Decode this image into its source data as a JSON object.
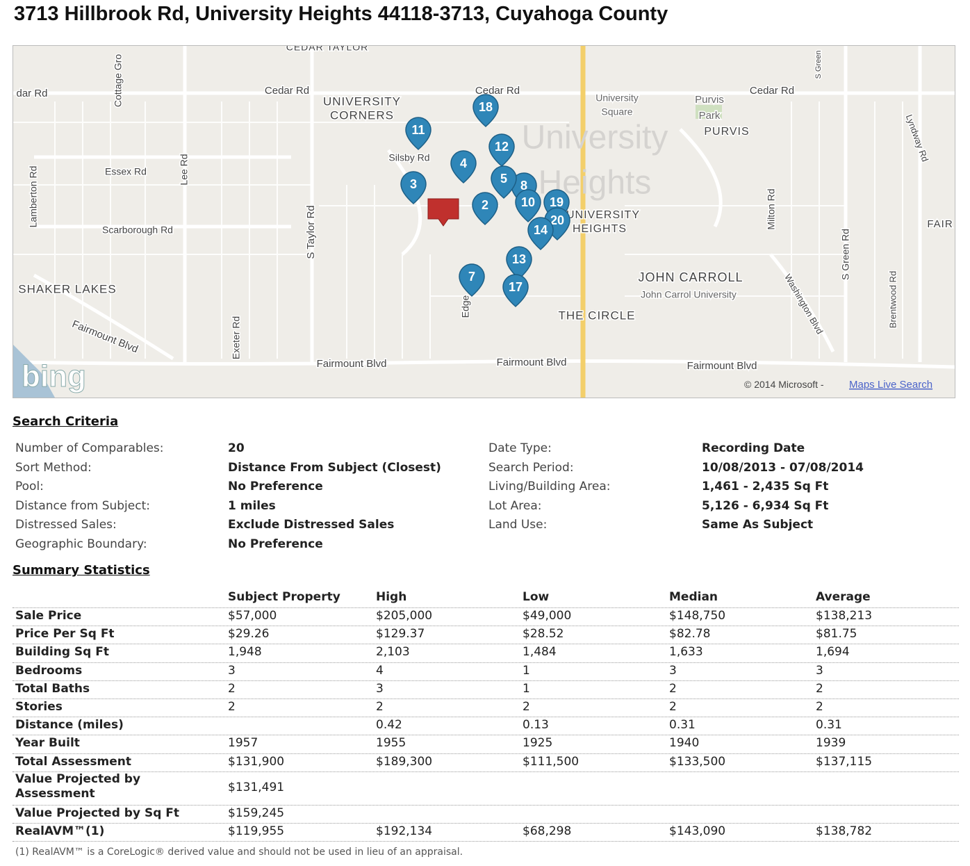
{
  "header": {
    "title": "3713 Hillbrook Rd, University Heights 44118-3713, Cuyahoga County"
  },
  "map": {
    "labels": [
      "CEDAR TAYLOR",
      "dar Rd",
      "Cottage Gro",
      "Cedar Rd",
      "Cedar Rd",
      "Cedar Rd",
      "UNIVERSITY",
      "CORNERS",
      "University",
      "Square",
      "Purvis",
      "Park",
      "PURVIS",
      "S Green",
      "Lyndway Rd",
      "Silsby Rd",
      "University",
      "Heights",
      "Essex Rd",
      "Lee Rd",
      "Lamberton Rd",
      "Scarborough Rd",
      "S Taylor Rd",
      "UNIVERSITY",
      "HEIGHTS",
      "Milton Rd",
      "S Green Rd",
      "FAIR",
      "SHAKER LAKES",
      "JOHN CARROLL",
      "John Carrol University",
      "Washington Blvd",
      "Brentwood Rd",
      "Edge",
      "THE CIRCLE",
      "Fairmount Blvd",
      "Exeter Rd",
      "Fairmount Blvd",
      "Fairmount Blvd",
      "Fairmount Blvd"
    ],
    "pins": [
      "11",
      "18",
      "12",
      "4",
      "3",
      "8",
      "5",
      "2",
      "10",
      "19",
      "20",
      "14",
      "13",
      "7",
      "17"
    ],
    "logo": "bing",
    "copyright": "© 2014 Microsoft -",
    "link": "Maps Live Search"
  },
  "search_criteria": {
    "heading": "Search Criteria",
    "rows": [
      [
        "Number of Comparables:",
        "20",
        "Date Type:",
        "Recording Date"
      ],
      [
        "Sort Method:",
        "Distance From Subject (Closest)",
        "Search Period:",
        "10/08/2013 - 07/08/2014"
      ],
      [
        "Pool:",
        "No Preference",
        "Living/Building Area:",
        "1,461 - 2,435 Sq Ft"
      ],
      [
        "Distance from Subject:",
        "1 miles",
        "Lot Area:",
        "5,126 - 6,934 Sq Ft"
      ],
      [
        "Distressed Sales:",
        "Exclude Distressed Sales",
        "Land Use:",
        "Same As Subject"
      ],
      [
        "Geographic Boundary:",
        "No Preference"
      ]
    ]
  },
  "summary_statistics": {
    "heading": "Summary Statistics",
    "columns": [
      "Subject Property",
      "High",
      "Low",
      "Median",
      "Average"
    ],
    "rows": [
      {
        "label": "Sale Price",
        "values": [
          "$57,000",
          "$205,000",
          "$49,000",
          "$148,750",
          "$138,213"
        ]
      },
      {
        "label": "Price Per Sq Ft",
        "values": [
          "$29.26",
          "$129.37",
          "$28.52",
          "$82.78",
          "$81.75"
        ]
      },
      {
        "label": "Building Sq Ft",
        "values": [
          "1,948",
          "2,103",
          "1,484",
          "1,633",
          "1,694"
        ]
      },
      {
        "label": "Bedrooms",
        "values": [
          "3",
          "4",
          "1",
          "3",
          "3"
        ]
      },
      {
        "label": "Total Baths",
        "values": [
          "2",
          "3",
          "1",
          "2",
          "2"
        ]
      },
      {
        "label": "Stories",
        "values": [
          "2",
          "2",
          "2",
          "2",
          "2"
        ]
      },
      {
        "label": "Distance (miles)",
        "values": [
          null,
          "0.42",
          "0.13",
          "0.31",
          "0.31"
        ]
      },
      {
        "label": "Year Built",
        "values": [
          "1957",
          "1955",
          "1925",
          "1940",
          "1939"
        ]
      },
      {
        "label": "Total Assessment",
        "values": [
          "$131,900",
          "$189,300",
          "$111,500",
          "$133,500",
          "$137,115"
        ]
      },
      {
        "label": "Value Projected by Assessment",
        "values": [
          "$131,491"
        ]
      },
      {
        "label": "Value Projected by Sq Ft",
        "values": [
          "$159,245"
        ]
      },
      {
        "label": "RealAVM™(1)",
        "values": [
          "$119,955",
          "$192,134",
          "$68,298",
          "$143,090",
          "$138,782"
        ]
      }
    ]
  },
  "footnote": "(1)  RealAVM™ is a CoreLogic® derived value and should not be used in lieu of an appraisal."
}
